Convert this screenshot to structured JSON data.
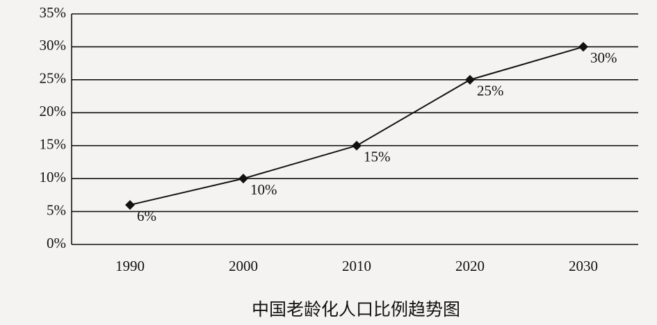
{
  "chart_data": {
    "type": "line",
    "title": "中国老龄化人口比例趋势图",
    "categories": [
      "1990",
      "2000",
      "2010",
      "2020",
      "2030"
    ],
    "values": [
      6,
      10,
      15,
      25,
      30
    ],
    "value_labels": [
      "6%",
      "10%",
      "15%",
      "25%",
      "30%"
    ],
    "color": "#111111",
    "ylim": [
      0,
      35
    ],
    "yticks": [
      {
        "value": 0,
        "label": "0%"
      },
      {
        "value": 5,
        "label": "5%"
      },
      {
        "value": 10,
        "label": "10%"
      },
      {
        "value": 15,
        "label": "15%"
      },
      {
        "value": 20,
        "label": "20%"
      },
      {
        "value": 25,
        "label": "25%"
      },
      {
        "value": 30,
        "label": "30%"
      },
      {
        "value": 35,
        "label": "35%"
      }
    ],
    "grid": true
  }
}
